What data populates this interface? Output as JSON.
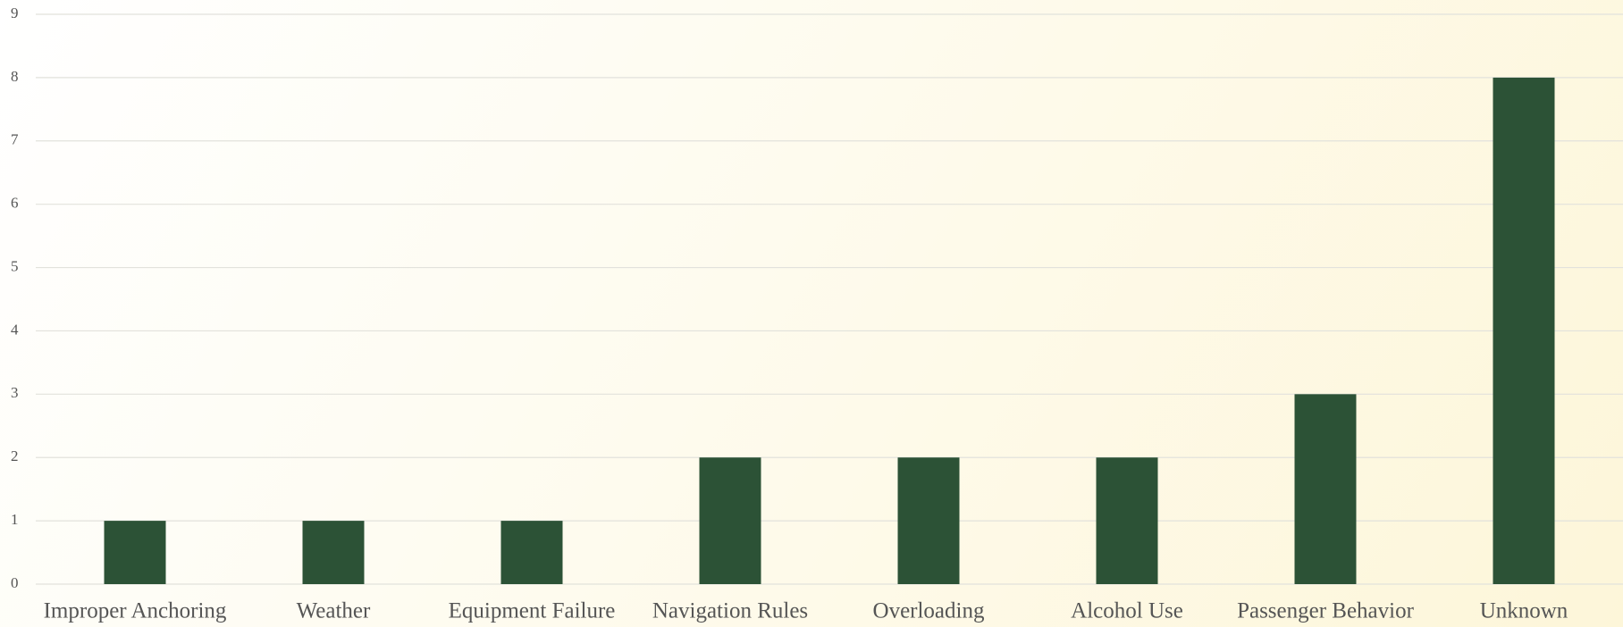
{
  "chart_data": {
    "type": "bar",
    "categories": [
      "Improper Anchoring",
      "Weather",
      "Equipment Failure",
      "Navigation Rules",
      "Overloading",
      "Alcohol Use",
      "Passenger Behavior",
      "Unknown"
    ],
    "values": [
      1,
      1,
      1,
      2,
      2,
      2,
      3,
      8
    ],
    "color": "#2c5236",
    "ylim": [
      0,
      9
    ],
    "yticks": [
      0,
      1,
      2,
      3,
      4,
      5,
      6,
      7,
      8,
      9
    ],
    "grid": true
  }
}
